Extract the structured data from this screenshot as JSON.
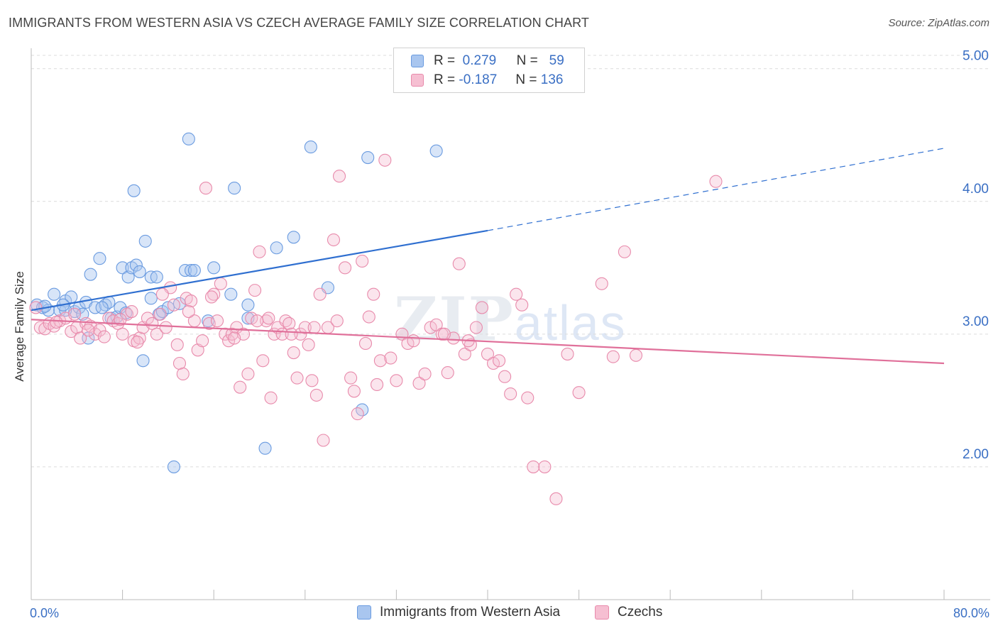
{
  "header": {
    "title": "IMMIGRANTS FROM WESTERN ASIA VS CZECH AVERAGE FAMILY SIZE CORRELATION CHART",
    "source": "Source: ZipAtlas.com"
  },
  "watermark": {
    "zip": "ZIP",
    "atlas": "atlas"
  },
  "legend": {
    "rows": [
      {
        "r_label": "R =",
        "r_value": "0.279",
        "n_label": "N =",
        "n_value": "59",
        "color": "#a9c6ef",
        "border": "#6a9be0"
      },
      {
        "r_label": "R =",
        "r_value": "-0.187",
        "n_label": "N =",
        "n_value": "136",
        "color": "#f6bfd2",
        "border": "#e88aab"
      }
    ]
  },
  "bottom_legend": [
    {
      "label": "Immigrants from Western Asia",
      "color": "#a9c6ef",
      "border": "#6a9be0"
    },
    {
      "label": "Czechs",
      "color": "#f6bfd2",
      "border": "#e88aab"
    }
  ],
  "chart_data": {
    "type": "scatter",
    "ylabel": "Average Family Size",
    "xlabel": "",
    "xlim": [
      0,
      80
    ],
    "ylim": [
      1.0,
      5.1
    ],
    "y_ticks": [
      {
        "value": 2.0,
        "label": "2.00"
      },
      {
        "value": 3.0,
        "label": "3.00"
      },
      {
        "value": 4.0,
        "label": "4.00"
      },
      {
        "value": 5.0,
        "label": "5.00"
      }
    ],
    "x_tick_labels": [
      {
        "value": 0,
        "label": "0.0%"
      },
      {
        "value": 80,
        "label": "80.0%"
      }
    ],
    "x_minor_ticks": [
      0,
      8,
      16,
      24,
      32,
      40,
      48,
      56,
      64,
      72,
      80
    ],
    "grid": true,
    "series": [
      {
        "name": "Immigrants from Western Asia",
        "color": "#6a9be0",
        "fill": "rgba(169,198,239,0.45)",
        "trend": {
          "x0": 0,
          "y0": 3.18,
          "x1": 40,
          "y1": 3.78,
          "dash_to_x": 80,
          "dash_to_y": 4.4,
          "color": "#2f6fd0"
        },
        "points": [
          [
            0.5,
            3.22
          ],
          [
            1.0,
            3.2
          ],
          [
            1.5,
            3.18
          ],
          [
            2.0,
            3.3
          ],
          [
            2.5,
            3.18
          ],
          [
            3.0,
            3.25
          ],
          [
            3.5,
            3.28
          ],
          [
            3.8,
            3.17
          ],
          [
            4.2,
            3.2
          ],
          [
            4.5,
            3.15
          ],
          [
            4.8,
            3.24
          ],
          [
            5.0,
            2.97
          ],
          [
            5.2,
            3.45
          ],
          [
            5.6,
            3.2
          ],
          [
            6.0,
            3.57
          ],
          [
            6.5,
            3.22
          ],
          [
            6.8,
            3.24
          ],
          [
            7.0,
            3.12
          ],
          [
            7.5,
            3.13
          ],
          [
            7.8,
            3.2
          ],
          [
            8.0,
            3.5
          ],
          [
            8.3,
            3.16
          ],
          [
            8.5,
            3.43
          ],
          [
            8.8,
            3.5
          ],
          [
            9.0,
            4.08
          ],
          [
            9.2,
            3.52
          ],
          [
            9.8,
            2.8
          ],
          [
            10.0,
            3.7
          ],
          [
            10.5,
            3.43
          ],
          [
            10.5,
            3.27
          ],
          [
            11.0,
            3.43
          ],
          [
            11.2,
            3.15
          ],
          [
            11.5,
            3.17
          ],
          [
            12.0,
            3.2
          ],
          [
            12.5,
            2.0
          ],
          [
            13.0,
            3.23
          ],
          [
            13.5,
            3.48
          ],
          [
            13.8,
            4.47
          ],
          [
            14.0,
            3.48
          ],
          [
            14.3,
            3.48
          ],
          [
            15.5,
            3.1
          ],
          [
            16.0,
            3.5
          ],
          [
            17.5,
            3.3
          ],
          [
            17.8,
            4.1
          ],
          [
            19.0,
            3.12
          ],
          [
            19.0,
            3.22
          ],
          [
            20.5,
            2.14
          ],
          [
            21.5,
            3.65
          ],
          [
            23.0,
            3.73
          ],
          [
            24.5,
            4.41
          ],
          [
            26.0,
            3.35
          ],
          [
            29.0,
            2.43
          ],
          [
            29.5,
            4.33
          ],
          [
            35.5,
            4.38
          ],
          [
            3.0,
            3.18
          ],
          [
            6.2,
            3.2
          ],
          [
            1.2,
            3.21
          ],
          [
            9.5,
            3.47
          ],
          [
            2.8,
            3.22
          ]
        ]
      },
      {
        "name": "Czechs",
        "color": "#e88aab",
        "fill": "rgba(246,191,210,0.4)",
        "trend": {
          "x0": 0,
          "y0": 3.11,
          "x1": 80,
          "y1": 2.78,
          "color": "#e0709a"
        },
        "points": [
          [
            0.4,
            3.2
          ],
          [
            0.8,
            3.05
          ],
          [
            1.2,
            3.04
          ],
          [
            1.6,
            3.08
          ],
          [
            2.0,
            3.06
          ],
          [
            2.5,
            3.1
          ],
          [
            3.0,
            3.12
          ],
          [
            3.5,
            3.02
          ],
          [
            4.0,
            3.05
          ],
          [
            4.3,
            2.97
          ],
          [
            4.8,
            3.08
          ],
          [
            5.2,
            3.06
          ],
          [
            5.6,
            3.0
          ],
          [
            6.0,
            3.03
          ],
          [
            6.4,
            2.98
          ],
          [
            6.8,
            3.12
          ],
          [
            7.2,
            3.1
          ],
          [
            7.6,
            3.08
          ],
          [
            8.0,
            3.0
          ],
          [
            8.4,
            3.15
          ],
          [
            8.8,
            3.17
          ],
          [
            9.0,
            2.95
          ],
          [
            9.5,
            2.97
          ],
          [
            9.8,
            3.05
          ],
          [
            10.2,
            3.12
          ],
          [
            10.6,
            3.08
          ],
          [
            11.0,
            3.0
          ],
          [
            11.3,
            3.15
          ],
          [
            11.8,
            3.05
          ],
          [
            12.2,
            3.35
          ],
          [
            12.5,
            3.22
          ],
          [
            12.8,
            2.92
          ],
          [
            13.0,
            2.78
          ],
          [
            13.3,
            2.7
          ],
          [
            13.6,
            3.27
          ],
          [
            14.0,
            3.25
          ],
          [
            14.3,
            3.1
          ],
          [
            14.6,
            2.88
          ],
          [
            15.0,
            2.95
          ],
          [
            15.3,
            4.1
          ],
          [
            15.6,
            3.08
          ],
          [
            16.0,
            3.3
          ],
          [
            16.3,
            3.1
          ],
          [
            16.6,
            3.38
          ],
          [
            17.0,
            3.0
          ],
          [
            17.3,
            2.95
          ],
          [
            17.6,
            3.0
          ],
          [
            18.0,
            3.05
          ],
          [
            18.3,
            2.6
          ],
          [
            18.6,
            3.0
          ],
          [
            19.0,
            2.7
          ],
          [
            19.3,
            3.12
          ],
          [
            19.6,
            3.33
          ],
          [
            20.0,
            3.62
          ],
          [
            20.3,
            2.8
          ],
          [
            20.6,
            3.1
          ],
          [
            21.0,
            2.52
          ],
          [
            21.3,
            3.0
          ],
          [
            21.6,
            3.05
          ],
          [
            22.0,
            3.0
          ],
          [
            22.3,
            3.1
          ],
          [
            22.6,
            3.08
          ],
          [
            23.0,
            2.86
          ],
          [
            23.3,
            2.67
          ],
          [
            23.6,
            3.0
          ],
          [
            24.0,
            3.05
          ],
          [
            24.3,
            2.92
          ],
          [
            24.6,
            2.65
          ],
          [
            25.0,
            2.54
          ],
          [
            25.3,
            3.3
          ],
          [
            25.6,
            2.2
          ],
          [
            26.0,
            3.05
          ],
          [
            26.5,
            3.71
          ],
          [
            27.0,
            4.19
          ],
          [
            27.5,
            3.5
          ],
          [
            28.0,
            2.67
          ],
          [
            28.3,
            2.57
          ],
          [
            28.6,
            2.4
          ],
          [
            29.0,
            3.55
          ],
          [
            29.3,
            2.93
          ],
          [
            29.6,
            3.13
          ],
          [
            30.0,
            3.3
          ],
          [
            30.3,
            2.62
          ],
          [
            30.6,
            2.8
          ],
          [
            31.0,
            4.31
          ],
          [
            31.5,
            2.82
          ],
          [
            32.0,
            2.65
          ],
          [
            32.5,
            3.0
          ],
          [
            33.0,
            2.93
          ],
          [
            33.5,
            2.95
          ],
          [
            34.0,
            2.63
          ],
          [
            34.5,
            2.7
          ],
          [
            35.0,
            3.05
          ],
          [
            35.5,
            3.07
          ],
          [
            36.0,
            3.0
          ],
          [
            36.5,
            2.71
          ],
          [
            37.0,
            2.97
          ],
          [
            37.5,
            3.53
          ],
          [
            38.0,
            2.85
          ],
          [
            38.5,
            2.92
          ],
          [
            39.0,
            3.05
          ],
          [
            39.5,
            3.2
          ],
          [
            40.0,
            2.85
          ],
          [
            40.5,
            2.78
          ],
          [
            41.0,
            2.8
          ],
          [
            41.5,
            2.68
          ],
          [
            42.0,
            2.55
          ],
          [
            42.5,
            3.3
          ],
          [
            43.0,
            3.22
          ],
          [
            43.5,
            2.52
          ],
          [
            44.0,
            2.0
          ],
          [
            45.0,
            2.0
          ],
          [
            46.0,
            1.76
          ],
          [
            47.0,
            2.85
          ],
          [
            48.0,
            2.56
          ],
          [
            50.0,
            3.38
          ],
          [
            51.0,
            2.83
          ],
          [
            52.0,
            3.62
          ],
          [
            53.0,
            2.84
          ],
          [
            60.0,
            4.15
          ],
          [
            38.3,
            2.95
          ],
          [
            36.2,
            3.0
          ],
          [
            26.8,
            3.1
          ],
          [
            20.8,
            3.12
          ],
          [
            13.8,
            3.17
          ],
          [
            9.3,
            2.94
          ],
          [
            5.0,
            3.03
          ],
          [
            2.2,
            3.09
          ],
          [
            3.8,
            3.15
          ],
          [
            7.8,
            3.11
          ],
          [
            11.5,
            3.3
          ],
          [
            15.8,
            3.28
          ],
          [
            17.8,
            2.97
          ],
          [
            19.8,
            3.1
          ],
          [
            22.8,
            3.0
          ],
          [
            24.8,
            3.05
          ]
        ]
      }
    ]
  }
}
